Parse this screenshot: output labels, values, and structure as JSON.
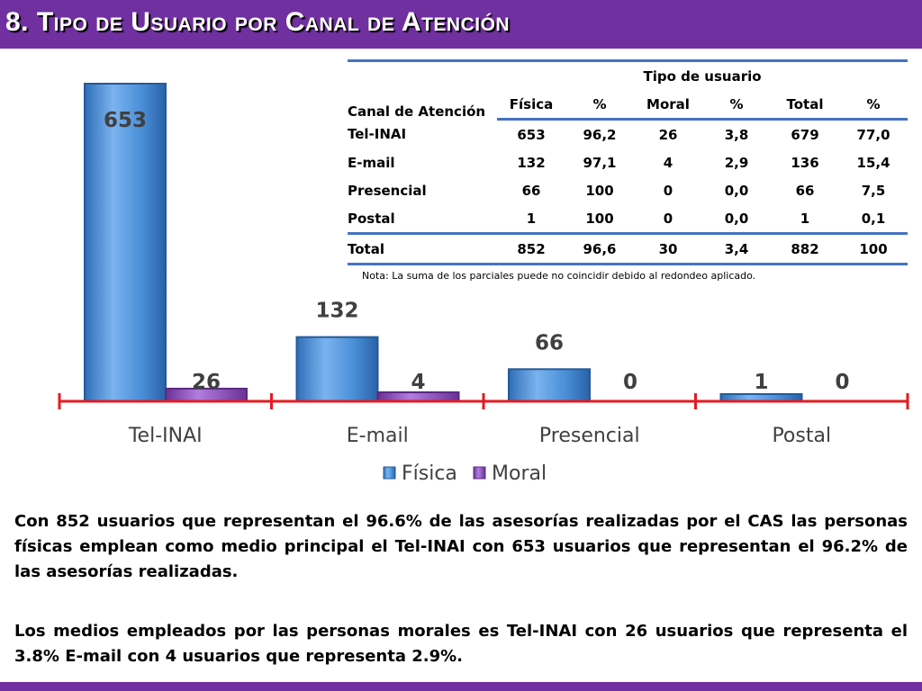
{
  "title": "8. Tipo de Usuario por Canal de Atención",
  "colors": {
    "accent": "#7030a0",
    "fisica": "#4a8fd8",
    "moral": "#8e4fc0",
    "axis": "#e31b23",
    "table_rule": "#4472c4"
  },
  "chart_data": {
    "type": "bar",
    "categories": [
      "Tel-INAI",
      "E-mail",
      "Presencial",
      "Postal"
    ],
    "series": [
      {
        "name": "Física",
        "values": [
          653,
          132,
          66,
          1
        ]
      },
      {
        "name": "Moral",
        "values": [
          26,
          4,
          0,
          0
        ]
      }
    ],
    "data_labels": [
      [
        "653",
        "132",
        "66",
        "1"
      ],
      [
        "26",
        "4",
        "0",
        "0"
      ]
    ],
    "title": "",
    "xlabel": "",
    "ylabel": "",
    "ylim": [
      0,
      653
    ],
    "legend": "bottom",
    "grid": false
  },
  "table": {
    "canal_header": "Canal de Atención",
    "group_header": "Tipo de usuario",
    "columns": [
      "Física",
      "%",
      "Moral",
      "%",
      "Total",
      "%"
    ],
    "rows": [
      {
        "canal": "Tel-INAI",
        "cells": [
          "653",
          "96,2",
          "26",
          "3,8",
          "679",
          "77,0"
        ]
      },
      {
        "canal": "E-mail",
        "cells": [
          "132",
          "97,1",
          "4",
          "2,9",
          "136",
          "15,4"
        ]
      },
      {
        "canal": "Presencial",
        "cells": [
          "66",
          "100",
          "0",
          "0,0",
          "66",
          "7,5"
        ]
      },
      {
        "canal": "Postal",
        "cells": [
          "1",
          "100",
          "0",
          "0,0",
          "1",
          "0,1"
        ]
      }
    ],
    "total": {
      "canal": "Total",
      "cells": [
        "852",
        "96,6",
        "30",
        "3,4",
        "882",
        "100"
      ]
    },
    "nota": "Nota: La suma de los parciales puede no coincidir debido al redondeo aplicado."
  },
  "paragraphs": [
    "Con 852 usuarios que representan el 96.6% de las asesorías realizadas por el CAS las personas físicas emplean como medio principal el Tel-INAI con 653 usuarios que representan el 96.2% de las asesorías realizadas.",
    "Los medios empleados por las personas morales es Tel-INAI con 26 usuarios que representa el 3.8%  E-mail con 4 usuarios que representa 2.9%."
  ]
}
